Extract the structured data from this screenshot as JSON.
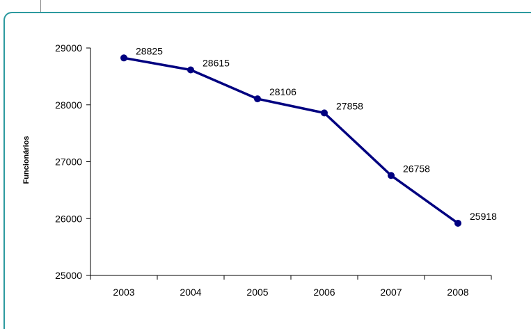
{
  "chart_data": {
    "type": "line",
    "categories": [
      "2003",
      "2004",
      "2005",
      "2006",
      "2007",
      "2008"
    ],
    "series": [
      {
        "values": [
          28825,
          28615,
          28106,
          27858,
          26758,
          25918
        ]
      }
    ],
    "data_labels": [
      "28825",
      "28615",
      "28106",
      "27858",
      "26758",
      "25918"
    ],
    "title": "",
    "xlabel": "",
    "ylabel": "Funcionários",
    "ylim": [
      25000,
      29000
    ],
    "yticks": [
      25000,
      26000,
      27000,
      28000,
      29000
    ],
    "ytick_labels": [
      "25000",
      "26000",
      "27000",
      "28000",
      "29000"
    ],
    "grid": false,
    "line_color": "#000080",
    "frame_color": "#2c9a9f"
  }
}
